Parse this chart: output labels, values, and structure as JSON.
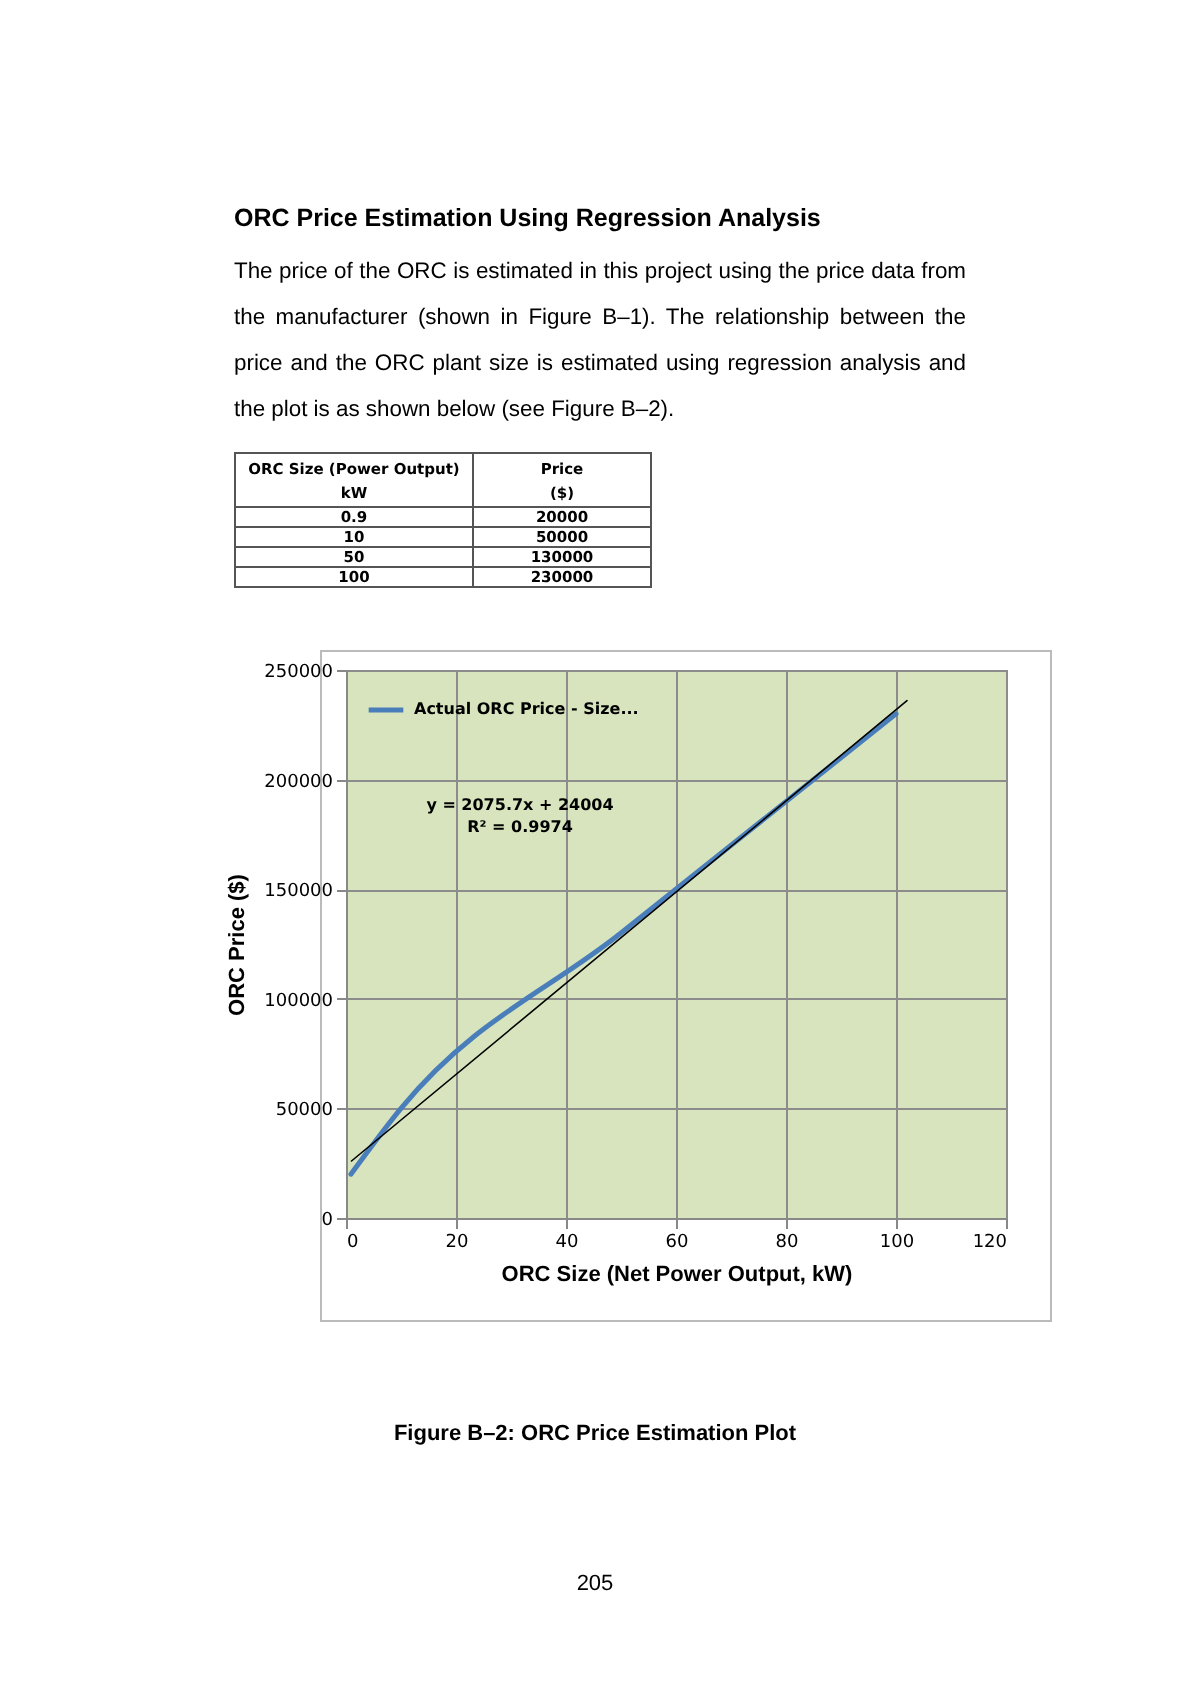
{
  "chart_data": {
    "type": "line",
    "title": "ORC Price Estimation Using Regression Analysis",
    "subtitle": "The price of the ORC is estimated in this project using the price data from the manufacturer (shown in Figure B–1). The relationship between the price and the ORC plant size is estimated using regression analysis and the plot is as shown below (see Figure B–2).",
    "xlabel": "ORC Size (Net Power Output, kW)",
    "ylabel": "ORC Price ($)",
    "annotations": [
      "y = 2075.7x + 24004",
      "R² = 0.9974",
      "ORC Size (Power Output)",
      "kW",
      "Price",
      "($)",
      "Figure B–2: ORC Price Estimation Plot",
      "205",
      "0.9",
      "20000",
      "10",
      "50000",
      "50",
      "130000",
      "100",
      "230000"
    ],
    "x": [
      0.9,
      10,
      50,
      100
    ],
    "series": [
      {
        "name": "Actual ORC Price - Size...",
        "color": "#4a7ebb",
        "values": [
          20000,
          50000,
          130000,
          230000
        ]
      },
      {
        "type": "line",
        "color": "#000000",
        "x": [
          1,
          102
        ],
        "values": [
          26000,
          236000
        ]
      }
    ],
    "xlim": [
      0,
      120
    ],
    "xticks": [
      0,
      20,
      40,
      60,
      80,
      100,
      120
    ],
    "ylim": [
      0,
      250000
    ],
    "yticks": [
      0,
      50000,
      100000,
      150000,
      200000,
      250000
    ],
    "grid": true,
    "legend": "top left"
  }
}
